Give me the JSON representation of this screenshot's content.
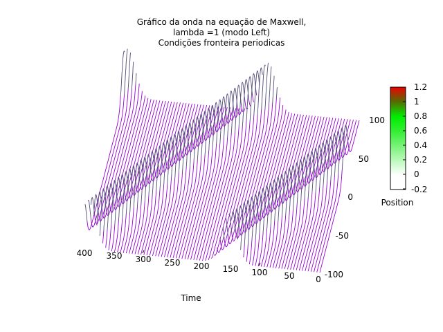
{
  "chart_data": {
    "type": "surface3d",
    "title_lines": [
      "Gráfico da onda na equação de Maxwell,",
      "lambda =1 (modo Left)",
      "Condições fronteira periodicas"
    ],
    "xlabel": "Time",
    "ylabel": "Position",
    "x_ticks": [
      "400",
      "350",
      "300",
      "250",
      "200",
      "150",
      "100",
      "50",
      "0"
    ],
    "y_ticks": [
      "-100",
      "-50",
      "0",
      "50",
      "100"
    ],
    "xlim": [
      0,
      400
    ],
    "ylim": [
      -120,
      120
    ],
    "zlim": [
      -0.2,
      1.2
    ],
    "colorbar": {
      "ticks": [
        "1.2",
        "1",
        "0.8",
        "0.6",
        "0.4",
        "0.2",
        "0",
        "-0.2"
      ],
      "label": "Position",
      "colors": {
        "zero": "#ffffff",
        "mid": "#00ee00",
        "high": "#556b00",
        "top": "#ee0000"
      }
    },
    "surface_colors": {
      "mesh": "#9400d3",
      "high": "#00cc00"
    },
    "wave": {
      "shape": "gaussian pulse",
      "amplitude": 1,
      "mode": "Left",
      "lambda": 1,
      "boundary": "periodic"
    }
  }
}
